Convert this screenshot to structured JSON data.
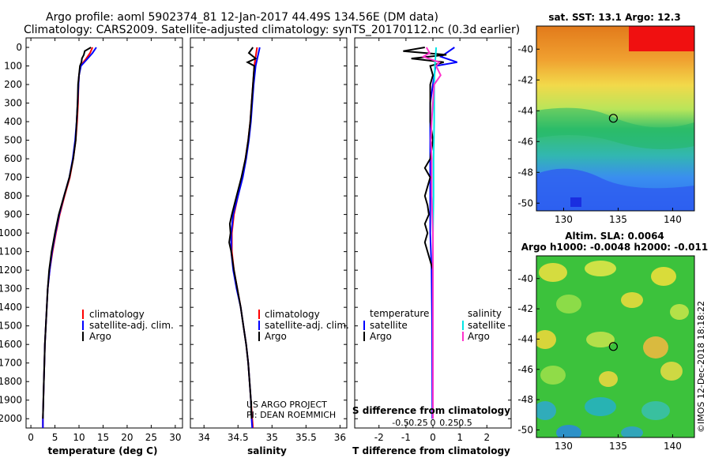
{
  "header": {
    "title_line1": "Argo profile: aoml 5902374_81 12-Jan-2017 44.49S 134.56E (DM data)",
    "title_line2": "Climatology: CARS2009. Satellite-adjusted climatology: synTS_20170112.nc (0.3d earlier)"
  },
  "colors": {
    "climatology": "#ff0000",
    "satellite": "#0000ff",
    "argo": "#000000",
    "salinity_satellite": "#00e5e5",
    "salinity_argo": "#ff33cc"
  },
  "depth_axis": {
    "ticks": [
      "0",
      "100",
      "200",
      "300",
      "400",
      "500",
      "600",
      "700",
      "800",
      "900",
      "1000",
      "1100",
      "1200",
      "1300",
      "1400",
      "1500",
      "1600",
      "1700",
      "1800",
      "1900",
      "2000"
    ],
    "min": 0,
    "max": 2050
  },
  "credits": {
    "project": "US ARGO PROJECT",
    "pi": "PI: DEAN ROEMMICH"
  },
  "watermark": "©IMOS 12-Dec-2018 18:18:22",
  "chart_data": [
    {
      "type": "line",
      "id": "temperature",
      "xlabel": "temperature (deg C)",
      "ylabel": "depth",
      "xlim": [
        -1,
        31.5
      ],
      "ylim": [
        2050,
        0
      ],
      "xticks": [
        0,
        5,
        10,
        15,
        20,
        25,
        30
      ],
      "xtick_labels": [
        "0",
        "5",
        "10",
        "15",
        "20",
        "25",
        "30"
      ],
      "legend": [
        "climatology",
        "satellite-adj. clim.",
        "Argo"
      ],
      "series": [
        {
          "name": "climatology",
          "depth": [
            0,
            30,
            60,
            100,
            150,
            200,
            300,
            400,
            500,
            600,
            700,
            800,
            900,
            1000,
            1100,
            1200,
            1300,
            1400,
            1500,
            1600,
            1700,
            1800,
            1900,
            2000,
            2050
          ],
          "values": [
            12.8,
            12.3,
            11.5,
            10.3,
            10.0,
            9.9,
            9.8,
            9.6,
            9.3,
            8.8,
            8.1,
            7.0,
            6.0,
            5.2,
            4.5,
            3.9,
            3.5,
            3.3,
            3.1,
            2.9,
            2.8,
            2.7,
            2.6,
            2.5,
            2.5
          ]
        },
        {
          "name": "satellite-adj. clim.",
          "depth": [
            0,
            30,
            60,
            100,
            150,
            200,
            300,
            400,
            500,
            600,
            700,
            800,
            900,
            1000,
            1100,
            1200,
            1300,
            1400,
            1500,
            1600,
            1700,
            1800,
            1900,
            2000,
            2050
          ],
          "values": [
            13.6,
            12.8,
            11.8,
            10.4,
            10.0,
            9.9,
            9.7,
            9.5,
            9.2,
            8.7,
            8.0,
            6.9,
            5.9,
            5.1,
            4.4,
            3.9,
            3.5,
            3.3,
            3.1,
            2.9,
            2.8,
            2.7,
            2.6,
            2.5,
            2.5
          ]
        },
        {
          "name": "Argo",
          "depth": [
            0,
            20,
            40,
            60,
            80,
            100,
            150,
            200,
            300,
            400,
            500,
            600,
            700,
            800,
            900,
            1000,
            1100,
            1200,
            1300,
            1400,
            1500,
            1600,
            1700,
            1800,
            1900,
            2000
          ],
          "values": [
            12.5,
            11.2,
            11.0,
            10.6,
            10.5,
            10.2,
            10.0,
            9.8,
            9.7,
            9.5,
            9.3,
            8.8,
            8.0,
            6.9,
            5.8,
            5.0,
            4.3,
            3.8,
            3.5,
            3.3,
            3.1,
            2.9,
            2.8,
            2.7,
            2.6,
            2.5
          ]
        }
      ]
    },
    {
      "type": "line",
      "id": "salinity",
      "xlabel": "salinity",
      "ylabel": "depth",
      "xlim": [
        33.8,
        36.1
      ],
      "ylim": [
        2050,
        0
      ],
      "xticks": [
        34,
        34.5,
        35,
        35.5,
        36
      ],
      "xtick_labels": [
        "34",
        "34.5",
        "35",
        "35.5",
        "36"
      ],
      "legend": [
        "climatology",
        "satellite-adj. clim.",
        "Argo"
      ],
      "series": [
        {
          "name": "climatology",
          "depth": [
            0,
            50,
            100,
            200,
            300,
            400,
            500,
            600,
            700,
            800,
            900,
            1000,
            1100,
            1200,
            1300,
            1400,
            1500,
            1600,
            1700,
            1800,
            1900,
            2000,
            2050
          ],
          "values": [
            34.78,
            34.76,
            34.74,
            34.72,
            34.7,
            34.68,
            34.65,
            34.61,
            34.56,
            34.5,
            34.44,
            34.41,
            34.41,
            34.44,
            34.49,
            34.54,
            34.58,
            34.62,
            34.65,
            34.67,
            34.69,
            34.71,
            34.72
          ]
        },
        {
          "name": "satellite-adj. clim.",
          "depth": [
            0,
            50,
            100,
            200,
            300,
            400,
            500,
            600,
            700,
            800,
            900,
            1000,
            1100,
            1200,
            1300,
            1400,
            1500,
            1600,
            1700,
            1800,
            1900,
            2000,
            2050
          ],
          "values": [
            34.82,
            34.79,
            34.76,
            34.73,
            34.71,
            34.69,
            34.66,
            34.62,
            34.57,
            34.5,
            34.43,
            34.4,
            34.4,
            34.43,
            34.48,
            34.54,
            34.58,
            34.62,
            34.65,
            34.67,
            34.69,
            34.7,
            34.71
          ]
        },
        {
          "name": "Argo",
          "depth": [
            0,
            30,
            60,
            80,
            100,
            200,
            300,
            400,
            500,
            600,
            700,
            800,
            900,
            950,
            1000,
            1050,
            1100,
            1150,
            1200,
            1300,
            1400,
            1500,
            1600,
            1700,
            1800,
            1900,
            2000
          ],
          "values": [
            34.72,
            34.66,
            34.76,
            34.64,
            34.74,
            34.72,
            34.7,
            34.68,
            34.65,
            34.61,
            34.55,
            34.48,
            34.41,
            34.38,
            34.39,
            34.37,
            34.4,
            34.42,
            34.44,
            34.49,
            34.54,
            34.58,
            34.62,
            34.65,
            34.67,
            34.69,
            34.7
          ]
        }
      ]
    },
    {
      "type": "line",
      "id": "difference",
      "xlabel": "T difference from climatology",
      "ylabel": "depth",
      "xlim": [
        -2.9,
        2.9
      ],
      "ylim": [
        2050,
        0
      ],
      "xticks": [
        -2,
        -1,
        0,
        1,
        2
      ],
      "xtick_labels": [
        "-2",
        "-1",
        "0",
        "1",
        "2"
      ],
      "s_axis_label": "S difference from climatology",
      "s_ticks": [
        -0.5,
        -0.25,
        0,
        0.25,
        0.5
      ],
      "s_tick_labels": [
        "-0.5",
        "-0.25",
        "0",
        "0.25",
        "0.5"
      ],
      "legend_temperature": [
        "temperature",
        "satellite",
        "Argo"
      ],
      "legend_salinity": [
        "salinity",
        "satellite",
        "Argo"
      ],
      "series": [
        {
          "name": "temperature satellite",
          "depth": [
            0,
            30,
            50,
            80,
            100,
            200,
            300,
            400,
            500,
            600,
            800,
            1000,
            1200,
            1500,
            2000
          ],
          "values": [
            0.8,
            0.5,
            0.3,
            0.9,
            0.1,
            0.0,
            -0.1,
            -0.1,
            -0.1,
            -0.1,
            -0.1,
            -0.1,
            -0.05,
            -0.03,
            -0.02
          ]
        },
        {
          "name": "temperature Argo",
          "depth": [
            0,
            20,
            40,
            60,
            80,
            100,
            150,
            200,
            300,
            400,
            500,
            600,
            650,
            700,
            750,
            800,
            850,
            900,
            950,
            1000,
            1050,
            1100,
            1150,
            1200,
            1400,
            1600,
            1800,
            2000
          ],
          "values": [
            -0.3,
            -1.1,
            0.5,
            -0.8,
            0.4,
            -0.1,
            0.0,
            -0.1,
            -0.1,
            -0.1,
            0.0,
            -0.1,
            -0.3,
            -0.1,
            -0.2,
            -0.3,
            -0.2,
            -0.15,
            -0.3,
            -0.2,
            -0.3,
            -0.2,
            -0.1,
            0.0,
            0.0,
            0.0,
            0.0,
            0.0
          ]
        },
        {
          "name": "salinity satellite",
          "depth": [
            0,
            100,
            200,
            400,
            600,
            800,
            1000,
            1200,
            1500,
            2000
          ],
          "values": [
            0.05,
            0.03,
            0.02,
            0.02,
            0.01,
            0.01,
            0.0,
            0.0,
            0.0,
            0.0
          ]
        },
        {
          "name": "salinity Argo",
          "depth": [
            0,
            30,
            50,
            80,
            100,
            150,
            200,
            300,
            400,
            500,
            600,
            800,
            1000,
            1500,
            2000
          ],
          "values": [
            -0.1,
            -0.05,
            -0.15,
            0.1,
            0.05,
            0.12,
            0.02,
            0.0,
            -0.02,
            -0.03,
            -0.02,
            -0.02,
            0.0,
            0.0,
            0.0
          ]
        }
      ]
    },
    {
      "type": "heatmap",
      "id": "sst_map",
      "title": "sat. SST: 13.1 Argo: 12.3",
      "xlim": [
        127.5,
        142
      ],
      "ylim": [
        -50.5,
        -38.5
      ],
      "xtick_labels": [
        "130",
        "135",
        "140"
      ],
      "ytick_labels": [
        "-40",
        "-42",
        "-44",
        "-46",
        "-48",
        "-50"
      ],
      "marker": {
        "lon": 134.56,
        "lat": -44.49
      }
    },
    {
      "type": "heatmap",
      "id": "sla_map",
      "title_line1": "Altim. SLA: 0.0064",
      "title_line2": "Argo h1000: -0.0048 h2000: -0.011",
      "xlim": [
        127.5,
        142
      ],
      "ylim": [
        -50.5,
        -38.5
      ],
      "xtick_labels": [
        "130",
        "135",
        "140"
      ],
      "ytick_labels": [
        "-40",
        "-42",
        "-44",
        "-46",
        "-48",
        "-50"
      ],
      "marker": {
        "lon": 134.56,
        "lat": -44.49
      }
    }
  ]
}
